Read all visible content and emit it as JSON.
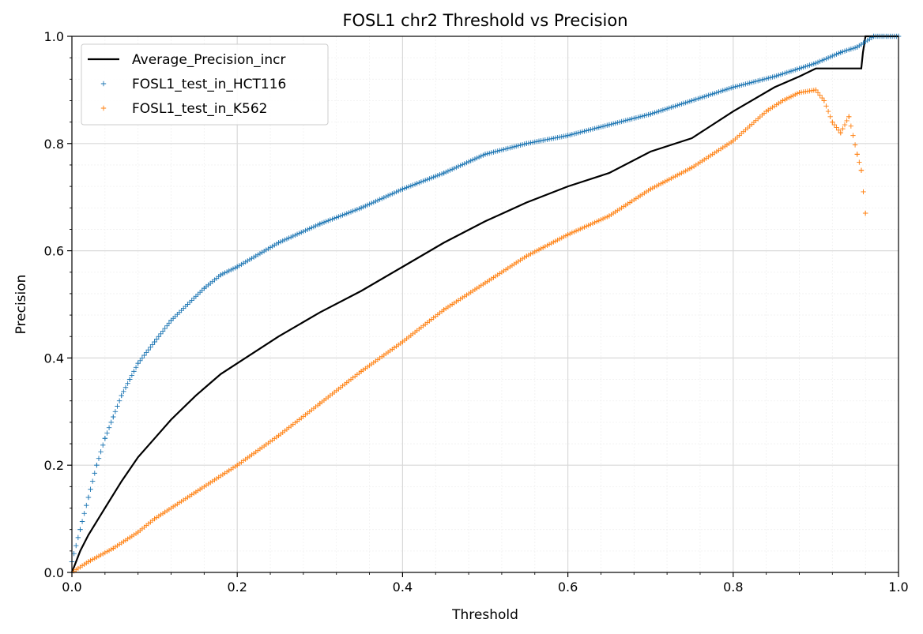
{
  "chart_data": {
    "type": "scatter",
    "title": "FOSL1 chr2 Threshold vs Precision",
    "xlabel": "Threshold",
    "ylabel": "Precision",
    "xlim": [
      0.0,
      1.0
    ],
    "ylim": [
      0.0,
      1.0
    ],
    "xticks": [
      "0.0",
      "0.2",
      "0.4",
      "0.6",
      "0.8",
      "1.0"
    ],
    "yticks": [
      "0.0",
      "0.2",
      "0.4",
      "0.6",
      "0.8",
      "1.0"
    ],
    "grid": "major and minor",
    "legend_position": "upper-left",
    "series": [
      {
        "name": "Average_Precision_incr",
        "kind": "line",
        "color": "#000000",
        "x": [
          0.0,
          0.01,
          0.02,
          0.04,
          0.06,
          0.08,
          0.1,
          0.12,
          0.15,
          0.18,
          0.2,
          0.25,
          0.3,
          0.35,
          0.4,
          0.45,
          0.5,
          0.55,
          0.6,
          0.65,
          0.7,
          0.75,
          0.8,
          0.85,
          0.88,
          0.9,
          0.955,
          0.957,
          0.96,
          0.97,
          1.0
        ],
        "y": [
          0.0,
          0.04,
          0.07,
          0.12,
          0.17,
          0.215,
          0.25,
          0.285,
          0.33,
          0.37,
          0.39,
          0.44,
          0.485,
          0.525,
          0.57,
          0.615,
          0.655,
          0.69,
          0.72,
          0.745,
          0.785,
          0.81,
          0.86,
          0.905,
          0.925,
          0.94,
          0.94,
          0.97,
          1.0,
          1.0,
          1.0
        ]
      },
      {
        "name": "FOSL1_test_in_HCT116",
        "kind": "scatter",
        "marker": "+",
        "color": "#1f77b4",
        "x": [
          0.0,
          0.01,
          0.02,
          0.03,
          0.04,
          0.05,
          0.06,
          0.07,
          0.08,
          0.1,
          0.12,
          0.14,
          0.16,
          0.18,
          0.2,
          0.25,
          0.3,
          0.35,
          0.4,
          0.45,
          0.5,
          0.55,
          0.6,
          0.65,
          0.7,
          0.75,
          0.8,
          0.85,
          0.88,
          0.9,
          0.93,
          0.95,
          0.97,
          1.0
        ],
        "y": [
          0.02,
          0.08,
          0.14,
          0.2,
          0.25,
          0.29,
          0.33,
          0.36,
          0.39,
          0.43,
          0.47,
          0.5,
          0.53,
          0.555,
          0.57,
          0.615,
          0.65,
          0.68,
          0.715,
          0.745,
          0.78,
          0.8,
          0.815,
          0.835,
          0.855,
          0.88,
          0.905,
          0.925,
          0.94,
          0.95,
          0.97,
          0.98,
          1.0,
          1.0
        ]
      },
      {
        "name": "FOSL1_test_in_K562",
        "kind": "scatter",
        "marker": "+",
        "color": "#ff7f0e",
        "x": [
          0.0,
          0.02,
          0.05,
          0.08,
          0.1,
          0.15,
          0.2,
          0.25,
          0.3,
          0.35,
          0.4,
          0.45,
          0.5,
          0.55,
          0.6,
          0.65,
          0.7,
          0.75,
          0.8,
          0.84,
          0.86,
          0.88,
          0.9,
          0.91,
          0.92,
          0.93,
          0.94,
          0.95,
          0.955,
          0.96
        ],
        "y": [
          0.0,
          0.02,
          0.045,
          0.075,
          0.1,
          0.15,
          0.2,
          0.255,
          0.315,
          0.375,
          0.43,
          0.49,
          0.54,
          0.59,
          0.63,
          0.665,
          0.715,
          0.755,
          0.805,
          0.86,
          0.88,
          0.895,
          0.9,
          0.88,
          0.84,
          0.82,
          0.85,
          0.78,
          0.75,
          0.67
        ]
      }
    ]
  }
}
